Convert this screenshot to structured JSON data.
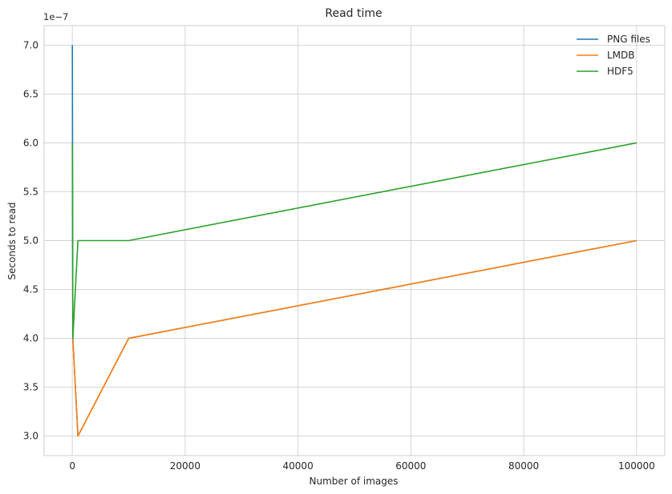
{
  "chart_data": {
    "type": "line",
    "title": "Read time",
    "xlabel": "Number of images",
    "ylabel": "Seconds to read",
    "offset_label": "1e−7",
    "x": [
      10,
      100,
      1000,
      10000,
      100000
    ],
    "xlim": [
      -4995,
      104995
    ],
    "ylim": [
      2.8e-07,
      7.2e-07
    ],
    "xticks": [
      0,
      20000,
      40000,
      60000,
      80000,
      100000
    ],
    "xtick_labels": [
      "0",
      "20000",
      "40000",
      "60000",
      "80000",
      "100000"
    ],
    "yticks": [
      3e-07,
      3.5e-07,
      4e-07,
      4.5e-07,
      5e-07,
      5.5e-07,
      6e-07,
      6.5e-07,
      7e-07
    ],
    "ytick_labels": [
      "3.0",
      "3.5",
      "4.0",
      "4.5",
      "5.0",
      "5.5",
      "6.0",
      "6.5",
      "7.0"
    ],
    "grid": true,
    "legend_position": "top-right",
    "series": [
      {
        "name": "PNG files",
        "color": "#1f77b4",
        "values": [
          7e-07,
          4e-07,
          3e-07,
          4e-07,
          5e-07
        ]
      },
      {
        "name": "LMDB",
        "color": "#ff7f0e",
        "values": [
          4e-07,
          4e-07,
          3e-07,
          4e-07,
          5e-07
        ]
      },
      {
        "name": "HDF5",
        "color": "#2ca02c",
        "values": [
          6e-07,
          4e-07,
          5e-07,
          5e-07,
          6e-07
        ]
      }
    ]
  }
}
